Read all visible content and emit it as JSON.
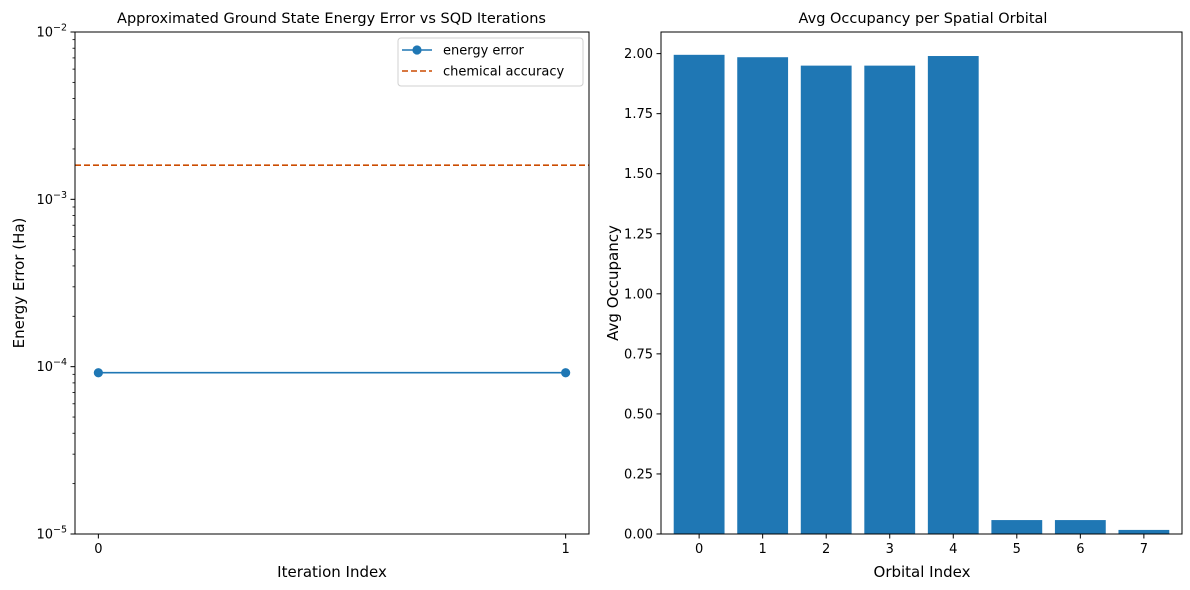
{
  "chart_data": [
    {
      "type": "line",
      "title": "Approximated Ground State Energy Error vs SQD Iterations",
      "xlabel": "Iteration Index",
      "ylabel": "Energy Error (Ha)",
      "yscale": "log",
      "xlim": [
        -0.05,
        1.05
      ],
      "ylim": [
        1e-05,
        0.01
      ],
      "x_ticks": [
        0,
        1
      ],
      "x_tick_labels": [
        "0",
        "1"
      ],
      "y_ticks": [
        1e-05,
        0.0001,
        0.001,
        0.01
      ],
      "y_tick_labels": [
        {
          "base": "10",
          "exp": "−5"
        },
        {
          "base": "10",
          "exp": "−4"
        },
        {
          "base": "10",
          "exp": "−3"
        },
        {
          "base": "10",
          "exp": "−2"
        }
      ],
      "series": [
        {
          "name": "energy error",
          "x": [
            0,
            1
          ],
          "y": [
            9.2e-05,
            9.2e-05
          ],
          "color": "#1f77b4",
          "marker": "circle",
          "style": "solid"
        }
      ],
      "reference_lines": [
        {
          "name": "chemical accuracy",
          "y": 0.0016,
          "color": "#cc4c02",
          "style": "dashed"
        }
      ],
      "legend": {
        "position": "top-right",
        "entries": [
          "energy error",
          "chemical accuracy"
        ]
      },
      "grid": false
    },
    {
      "type": "bar",
      "title": "Avg Occupancy per Spatial Orbital",
      "xlabel": "Orbital Index",
      "ylabel": "Avg Occupancy",
      "categories": [
        "0",
        "1",
        "2",
        "3",
        "4",
        "5",
        "6",
        "7"
      ],
      "values": [
        1.995,
        1.985,
        1.95,
        1.95,
        1.99,
        0.058,
        0.058,
        0.017
      ],
      "ylim": [
        0,
        2.09
      ],
      "y_ticks": [
        "0.00",
        "0.25",
        "0.50",
        "0.75",
        "1.00",
        "1.25",
        "1.50",
        "1.75",
        "2.00"
      ],
      "bar_color": "#1f77b4",
      "grid": false
    }
  ]
}
